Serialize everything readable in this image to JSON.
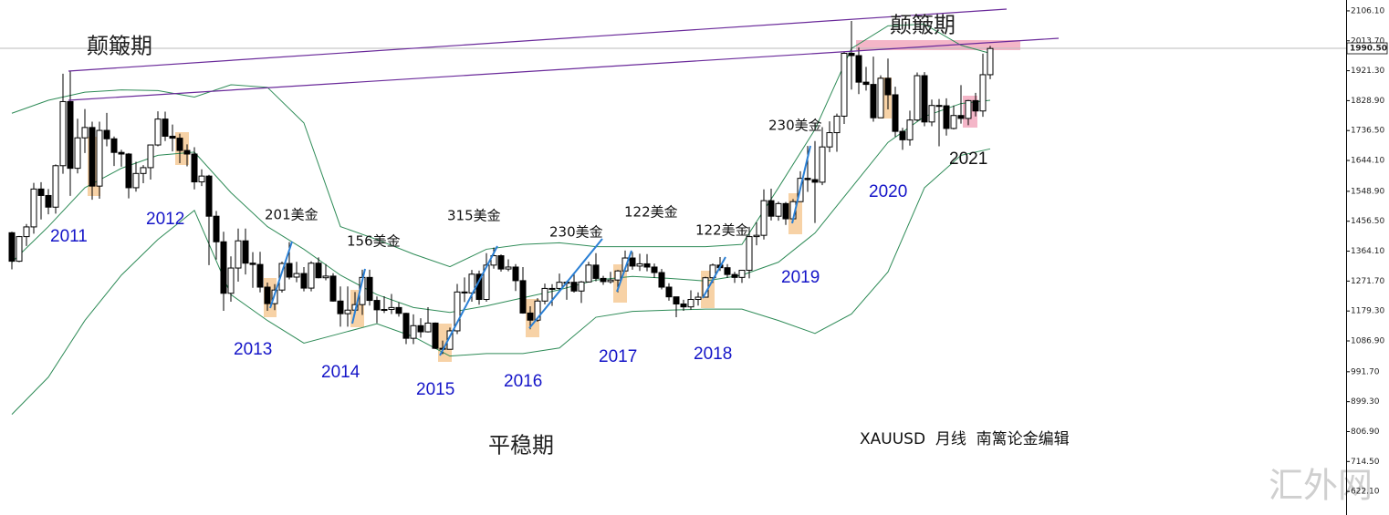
{
  "chart_data": {
    "type": "candlestick",
    "ylim": [
      549.3,
      2139.7
    ],
    "yticks": [
      {
        "value": 2106.1,
        "label": "2106.10"
      },
      {
        "value": 2013.7,
        "label": "2013.70"
      },
      {
        "value": 1921.3,
        "label": "1921.30"
      },
      {
        "value": 1828.9,
        "label": "1828.90"
      },
      {
        "value": 1736.5,
        "label": "1736.50"
      },
      {
        "value": 1644.1,
        "label": "1644.10"
      },
      {
        "value": 1548.9,
        "label": "1548.90"
      },
      {
        "value": 1456.5,
        "label": "1456.50"
      },
      {
        "value": 1364.1,
        "label": "1364.10"
      },
      {
        "value": 1271.7,
        "label": "1271.70"
      },
      {
        "value": 1179.3,
        "label": "1179.30"
      },
      {
        "value": 1086.9,
        "label": "1086.90"
      },
      {
        "value": 991.7,
        "label": "991.70"
      },
      {
        "value": 899.3,
        "label": "899.30"
      },
      {
        "value": 806.9,
        "label": "806.90"
      },
      {
        "value": 714.5,
        "label": "714.50"
      },
      {
        "value": 622.1,
        "label": "622.10"
      }
    ],
    "last_price": {
      "value": 1990.5,
      "label": "1990.50"
    },
    "up_color": "#ffffff",
    "down_color": "#000000",
    "band_color": "#2e8b57",
    "open": [
      1421,
      1333,
      1409,
      1439,
      1556,
      1536,
      1500,
      1628,
      1826,
      1620,
      1714,
      1746,
      1565,
      1737,
      1711,
      1669,
      1664,
      1560,
      1604,
      1622,
      1692,
      1772,
      1719,
      1713,
      1675,
      1664,
      1578,
      1596,
      1472,
      1393,
      1234,
      1312,
      1396,
      1327,
      1323,
      1253,
      1202,
      1244,
      1326,
      1284,
      1295,
      1250,
      1327,
      1282,
      1287,
      1210,
      1171,
      1182,
      1199,
      1283,
      1212,
      1183,
      1184,
      1190,
      1172,
      1095,
      1134,
      1115,
      1142,
      1064,
      1061,
      1118,
      1238,
      1235,
      1293,
      1215,
      1321,
      1350,
      1309,
      1315,
      1273,
      1173,
      1151,
      1210,
      1249,
      1249,
      1268,
      1268,
      1241,
      1269,
      1321,
      1280,
      1270,
      1275,
      1303,
      1343,
      1318,
      1325,
      1315,
      1298,
      1253,
      1223,
      1201,
      1192,
      1215,
      1222,
      1282,
      1321,
      1313,
      1292,
      1283,
      1305,
      1409,
      1413,
      1520,
      1472,
      1511,
      1464,
      1517,
      1589,
      1585,
      1577,
      1686,
      1730,
      1781,
      1975,
      1968,
      1886,
      1879,
      1776,
      1898,
      1847,
      1734,
      1708,
      1769,
      1906,
      1763,
      1814,
      1813,
      1743,
      1783,
      1774,
      1829,
      1797,
      1909
    ],
    "high": [
      1424,
      1411,
      1448,
      1575,
      1577,
      1556,
      1632,
      1912,
      1921,
      1773,
      1803,
      1764,
      1764,
      1791,
      1718,
      1677,
      1667,
      1640,
      1630,
      1693,
      1796,
      1795,
      1755,
      1727,
      1694,
      1685,
      1617,
      1600,
      1488,
      1424,
      1348,
      1434,
      1434,
      1361,
      1362,
      1267,
      1262,
      1332,
      1392,
      1331,
      1315,
      1333,
      1345,
      1324,
      1296,
      1255,
      1255,
      1238,
      1307,
      1307,
      1224,
      1225,
      1232,
      1206,
      1174,
      1169,
      1157,
      1191,
      1144,
      1088,
      1128,
      1263,
      1283,
      1306,
      1304,
      1358,
      1375,
      1354,
      1339,
      1324,
      1315,
      1194,
      1219,
      1264,
      1262,
      1295,
      1272,
      1296,
      1272,
      1331,
      1358,
      1288,
      1300,
      1306,
      1366,
      1361,
      1356,
      1355,
      1326,
      1309,
      1265,
      1218,
      1214,
      1243,
      1237,
      1285,
      1326,
      1346,
      1324,
      1300,
      1306,
      1439,
      1453,
      1555,
      1557,
      1517,
      1516,
      1525,
      1611,
      1689,
      1704,
      1747,
      1765,
      1789,
      1981,
      2075,
      1993,
      1933,
      1965,
      1907,
      1959,
      1872,
      1745,
      1798,
      1916,
      1917,
      1832,
      1834,
      1836,
      1814,
      1877,
      1831,
      1853,
      1974,
      1998
    ],
    "low": [
      1308,
      1330,
      1380,
      1418,
      1462,
      1478,
      1480,
      1603,
      1535,
      1604,
      1667,
      1523,
      1526,
      1688,
      1627,
      1625,
      1527,
      1548,
      1574,
      1585,
      1688,
      1704,
      1672,
      1636,
      1626,
      1555,
      1565,
      1321,
      1338,
      1180,
      1208,
      1270,
      1292,
      1251,
      1237,
      1180,
      1182,
      1236,
      1277,
      1268,
      1240,
      1240,
      1280,
      1274,
      1208,
      1131,
      1131,
      1170,
      1167,
      1196,
      1142,
      1173,
      1170,
      1162,
      1077,
      1077,
      1097,
      1113,
      1062,
      1046,
      1062,
      1108,
      1207,
      1208,
      1199,
      1208,
      1310,
      1301,
      1302,
      1241,
      1171,
      1123,
      1146,
      1200,
      1195,
      1244,
      1214,
      1236,
      1204,
      1267,
      1271,
      1260,
      1264,
      1237,
      1302,
      1307,
      1303,
      1302,
      1281,
      1246,
      1211,
      1160,
      1180,
      1183,
      1196,
      1221,
      1266,
      1303,
      1281,
      1266,
      1266,
      1280,
      1382,
      1400,
      1459,
      1458,
      1445,
      1454,
      1517,
      1547,
      1451,
      1568,
      1670,
      1671,
      1757,
      1863,
      1849,
      1860,
      1764,
      1775,
      1802,
      1717,
      1677,
      1690,
      1765,
      1750,
      1750,
      1688,
      1721,
      1740,
      1758,
      1753,
      1780,
      1779,
      1895
    ],
    "close": [
      1333,
      1409,
      1439,
      1556,
      1536,
      1500,
      1628,
      1826,
      1620,
      1714,
      1746,
      1565,
      1737,
      1711,
      1669,
      1664,
      1560,
      1604,
      1622,
      1692,
      1772,
      1719,
      1713,
      1675,
      1664,
      1578,
      1596,
      1472,
      1393,
      1234,
      1312,
      1396,
      1327,
      1323,
      1253,
      1202,
      1244,
      1326,
      1284,
      1295,
      1250,
      1327,
      1282,
      1287,
      1210,
      1171,
      1182,
      1199,
      1283,
      1212,
      1183,
      1184,
      1190,
      1172,
      1095,
      1134,
      1115,
      1142,
      1064,
      1061,
      1118,
      1238,
      1235,
      1293,
      1215,
      1321,
      1350,
      1309,
      1315,
      1273,
      1173,
      1151,
      1210,
      1249,
      1249,
      1268,
      1268,
      1241,
      1269,
      1321,
      1280,
      1270,
      1275,
      1303,
      1343,
      1318,
      1325,
      1315,
      1298,
      1253,
      1223,
      1201,
      1192,
      1215,
      1222,
      1282,
      1321,
      1313,
      1292,
      1283,
      1305,
      1409,
      1413,
      1520,
      1472,
      1511,
      1464,
      1517,
      1589,
      1585,
      1577,
      1686,
      1730,
      1781,
      1975,
      1968,
      1886,
      1879,
      1776,
      1898,
      1847,
      1734,
      1708,
      1769,
      1906,
      1763,
      1814,
      1813,
      1743,
      1783,
      1774,
      1829,
      1797,
      1909,
      1990
    ],
    "bands": [
      {
        "x": [
          0,
          5,
          10,
          15,
          20,
          25,
          30,
          35,
          40,
          45,
          50,
          55,
          60,
          65,
          70,
          75,
          80,
          85,
          90,
          95,
          100,
          105,
          110,
          115,
          120,
          125,
          130,
          134
        ],
        "values": [
          1790,
          1830,
          1855,
          1862,
          1860,
          1840,
          1878,
          1870,
          1760,
          1440,
          1400,
          1355,
          1316,
          1370,
          1385,
          1390,
          1378,
          1378,
          1378,
          1378,
          1385,
          1560,
          1740,
          1990,
          2060,
          2065,
          2000,
          1975
        ]
      },
      {
        "x": [
          0,
          5,
          10,
          15,
          20,
          25,
          30,
          35,
          40,
          45,
          50,
          55,
          60,
          65,
          70,
          75,
          80,
          85,
          90,
          95,
          100,
          105,
          110,
          115,
          120,
          125,
          130,
          134
        ],
        "values": [
          1330,
          1440,
          1560,
          1620,
          1660,
          1670,
          1545,
          1440,
          1370,
          1290,
          1230,
          1190,
          1175,
          1195,
          1220,
          1245,
          1275,
          1286,
          1280,
          1272,
          1290,
          1330,
          1420,
          1560,
          1700,
          1780,
          1820,
          1830
        ]
      },
      {
        "x": [
          0,
          5,
          10,
          15,
          20,
          25,
          30,
          35,
          40,
          45,
          50,
          55,
          60,
          65,
          70,
          75,
          80,
          85,
          90,
          95,
          100,
          105,
          110,
          115,
          120,
          125,
          130,
          134
        ],
        "values": [
          860,
          975,
          1150,
          1290,
          1400,
          1490,
          1230,
          1150,
          1080,
          1110,
          1140,
          1100,
          1040,
          1048,
          1048,
          1065,
          1160,
          1178,
          1182,
          1185,
          1185,
          1150,
          1110,
          1170,
          1300,
          1560,
          1660,
          1680
        ]
      }
    ]
  },
  "annotations": [
    "颠簸期",
    "颠簸期",
    "平稳期",
    "2011",
    "2012",
    "2013",
    "2014",
    "2015",
    "2016",
    "2017",
    "2018",
    "2019",
    "2020",
    "2021",
    "201美金",
    "156美金",
    "315美金",
    "230美金",
    "122美金",
    "122美金",
    "230美金",
    "XAUUSD  月线  南篱论金编辑",
    "汇外网"
  ]
}
